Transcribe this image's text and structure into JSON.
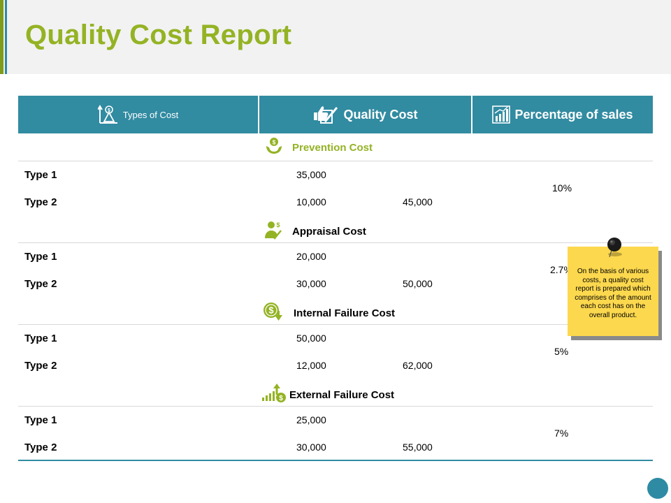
{
  "page": {
    "title": "Quality Cost Report"
  },
  "header": {
    "col1": "Types of Cost",
    "col2": "Quality Cost",
    "col3": "Percentage of sales"
  },
  "sections": [
    {
      "name": "Prevention Cost",
      "icon": "hands-money-icon",
      "color": "#94b324",
      "rows": [
        {
          "label": "Type 1",
          "value": "35,000"
        },
        {
          "label": "Type 2",
          "value": "10,000"
        }
      ],
      "total": "45,000",
      "percent": "10%"
    },
    {
      "name": "Appraisal Cost",
      "icon": "person-dollar-icon",
      "color": "#000000",
      "rows": [
        {
          "label": "Type 1",
          "value": "20,000"
        },
        {
          "label": "Type 2",
          "value": "30,000"
        }
      ],
      "total": "50,000",
      "percent": "2.7%"
    },
    {
      "name": "Internal Failure Cost",
      "icon": "dollar-down-icon",
      "color": "#000000",
      "rows": [
        {
          "label": "Type 1",
          "value": "50,000"
        },
        {
          "label": "Type 2",
          "value": "12,000"
        }
      ],
      "total": "62,000",
      "percent": "5%"
    },
    {
      "name": "External Failure Cost",
      "icon": "bars-dollar-icon",
      "color": "#000000",
      "rows": [
        {
          "label": "Type 1",
          "value": "25,000"
        },
        {
          "label": "Type 2",
          "value": "30,000"
        }
      ],
      "total": "55,000",
      "percent": "7%"
    }
  ],
  "note": {
    "text": "On the basis of various costs, a quality cost report is prepared which comprises of the amount each cost has on the overall product."
  },
  "colors": {
    "accent_green": "#94b324",
    "accent_teal": "#318ba1",
    "note_yellow": "#fcd84e"
  }
}
